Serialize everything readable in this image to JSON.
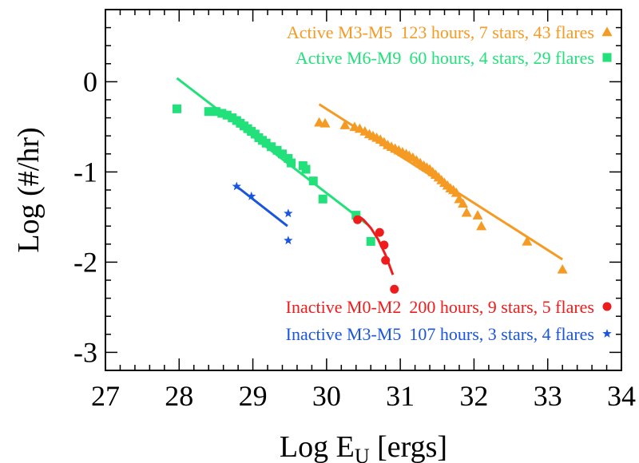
{
  "chart_data": {
    "type": "scatter",
    "title": "",
    "xlabel": "Log E",
    "xlabel_sub": "U",
    "xlabel_unit": " [ergs]",
    "ylabel": "Log (#/hr)",
    "xlim": [
      27,
      34
    ],
    "ylim": [
      -3.2,
      0.8
    ],
    "x_ticks": [
      27,
      28,
      29,
      30,
      31,
      32,
      33,
      34
    ],
    "x_tick_labels": [
      "27",
      "28",
      "29",
      "30",
      "31",
      "32",
      "33",
      "34"
    ],
    "y_ticks": [
      0,
      -1,
      -2,
      -3
    ],
    "y_tick_labels": [
      "0",
      "-1",
      "-2",
      "-3"
    ],
    "grid": false,
    "series": [
      {
        "name": "Active M3-M5",
        "legend_desc": "123 hours, 7 stars, 43 flares",
        "legend_position": "top",
        "color": "#f59a23",
        "marker": "triangle",
        "points": [
          [
            29.9,
            -0.45
          ],
          [
            29.98,
            -0.46
          ],
          [
            30.25,
            -0.48
          ],
          [
            30.38,
            -0.5
          ],
          [
            30.45,
            -0.52
          ],
          [
            30.52,
            -0.55
          ],
          [
            30.58,
            -0.58
          ],
          [
            30.63,
            -0.6
          ],
          [
            30.68,
            -0.62
          ],
          [
            30.73,
            -0.64
          ],
          [
            30.78,
            -0.67
          ],
          [
            30.83,
            -0.7
          ],
          [
            30.88,
            -0.72
          ],
          [
            30.93,
            -0.74
          ],
          [
            30.98,
            -0.76
          ],
          [
            31.03,
            -0.78
          ],
          [
            31.08,
            -0.8
          ],
          [
            31.12,
            -0.82
          ],
          [
            31.17,
            -0.84
          ],
          [
            31.22,
            -0.87
          ],
          [
            31.27,
            -0.9
          ],
          [
            31.32,
            -0.93
          ],
          [
            31.36,
            -0.95
          ],
          [
            31.4,
            -0.97
          ],
          [
            31.44,
            -1.0
          ],
          [
            31.48,
            -1.03
          ],
          [
            31.52,
            -1.06
          ],
          [
            31.56,
            -1.09
          ],
          [
            31.6,
            -1.12
          ],
          [
            31.64,
            -1.15
          ],
          [
            31.68,
            -1.18
          ],
          [
            31.72,
            -1.2
          ],
          [
            31.76,
            -1.23
          ],
          [
            31.8,
            -1.3
          ],
          [
            31.85,
            -1.35
          ],
          [
            31.9,
            -1.45
          ],
          [
            32.05,
            -1.48
          ],
          [
            32.1,
            -1.6
          ],
          [
            32.72,
            -1.77
          ],
          [
            33.2,
            -2.08
          ]
        ],
        "fit_line": [
          [
            29.9,
            -0.25
          ],
          [
            33.2,
            -1.97
          ]
        ]
      },
      {
        "name": "Active M6-M9",
        "legend_desc": "60 hours, 4 stars, 29 flares",
        "legend_position": "top",
        "color": "#22e07a",
        "marker": "square",
        "points": [
          [
            27.97,
            -0.3
          ],
          [
            28.4,
            -0.33
          ],
          [
            28.5,
            -0.33
          ],
          [
            28.58,
            -0.35
          ],
          [
            28.65,
            -0.37
          ],
          [
            28.72,
            -0.4
          ],
          [
            28.78,
            -0.43
          ],
          [
            28.83,
            -0.46
          ],
          [
            28.88,
            -0.49
          ],
          [
            28.93,
            -0.52
          ],
          [
            28.98,
            -0.55
          ],
          [
            29.03,
            -0.58
          ],
          [
            29.08,
            -0.62
          ],
          [
            29.13,
            -0.65
          ],
          [
            29.18,
            -0.68
          ],
          [
            29.25,
            -0.72
          ],
          [
            29.33,
            -0.76
          ],
          [
            29.4,
            -0.8
          ],
          [
            29.48,
            -0.85
          ],
          [
            29.52,
            -0.9
          ],
          [
            29.68,
            -0.93
          ],
          [
            29.72,
            -0.97
          ],
          [
            29.82,
            -1.1
          ],
          [
            29.95,
            -1.3
          ],
          [
            30.4,
            -1.48
          ],
          [
            30.6,
            -1.77
          ]
        ],
        "fit_line": [
          [
            27.97,
            0.04
          ],
          [
            30.55,
            -1.58
          ]
        ]
      },
      {
        "name": "Inactive M0-M2",
        "legend_desc": "200 hours, 9 stars, 5 flares",
        "legend_position": "bottom",
        "color": "#ee1c1c",
        "marker": "circle",
        "points": [
          [
            30.42,
            -1.53
          ],
          [
            30.72,
            -1.67
          ],
          [
            30.78,
            -1.81
          ],
          [
            30.8,
            -1.98
          ],
          [
            30.92,
            -2.3
          ]
        ],
        "fit_curve": [
          [
            30.4,
            -1.47
          ],
          [
            30.5,
            -1.53
          ],
          [
            30.6,
            -1.62
          ],
          [
            30.7,
            -1.75
          ],
          [
            30.8,
            -1.92
          ],
          [
            30.9,
            -2.14
          ]
        ]
      },
      {
        "name": "Inactive M3-M5",
        "legend_desc": "107 hours, 3 stars, 4 flares",
        "legend_position": "bottom",
        "color": "#1a55dd",
        "marker": "star",
        "points": [
          [
            28.78,
            -1.16
          ],
          [
            28.98,
            -1.27
          ],
          [
            29.48,
            -1.46
          ],
          [
            29.48,
            -1.76
          ]
        ],
        "fit_line": [
          [
            28.78,
            -1.16
          ],
          [
            29.47,
            -1.6
          ]
        ]
      }
    ]
  }
}
